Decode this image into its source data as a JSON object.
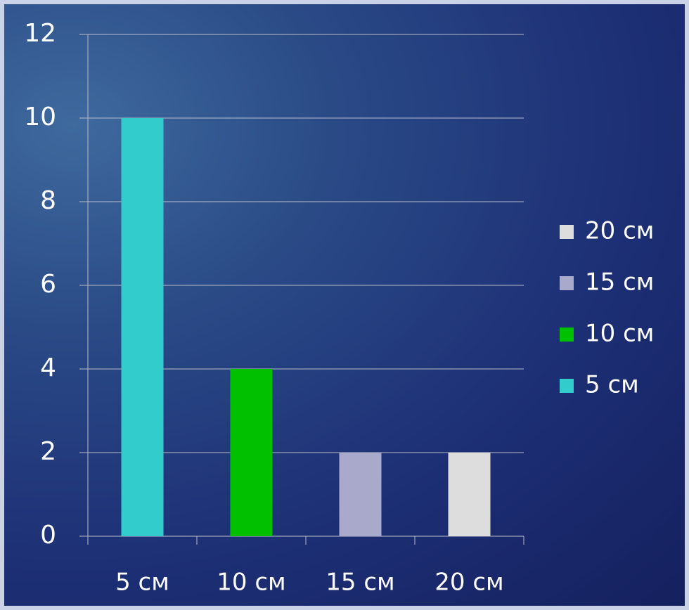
{
  "chart_data": {
    "type": "bar",
    "categories": [
      "5 см",
      "10 см",
      "15 см",
      "20 см"
    ],
    "series": [
      {
        "name": "5 см",
        "color": "#33cccc",
        "values": [
          10,
          null,
          null,
          null
        ]
      },
      {
        "name": "10 см",
        "color": "#00c000",
        "values": [
          null,
          4,
          null,
          null
        ]
      },
      {
        "name": "15 см",
        "color": "#a9a9cc",
        "values": [
          null,
          null,
          2,
          null
        ]
      },
      {
        "name": "20 см",
        "color": "#dddddd",
        "values": [
          null,
          null,
          null,
          2
        ]
      }
    ],
    "ylim": [
      0,
      12
    ],
    "yticks": [
      0,
      2,
      4,
      6,
      8,
      10,
      12
    ],
    "grid": true,
    "legend": "right"
  }
}
